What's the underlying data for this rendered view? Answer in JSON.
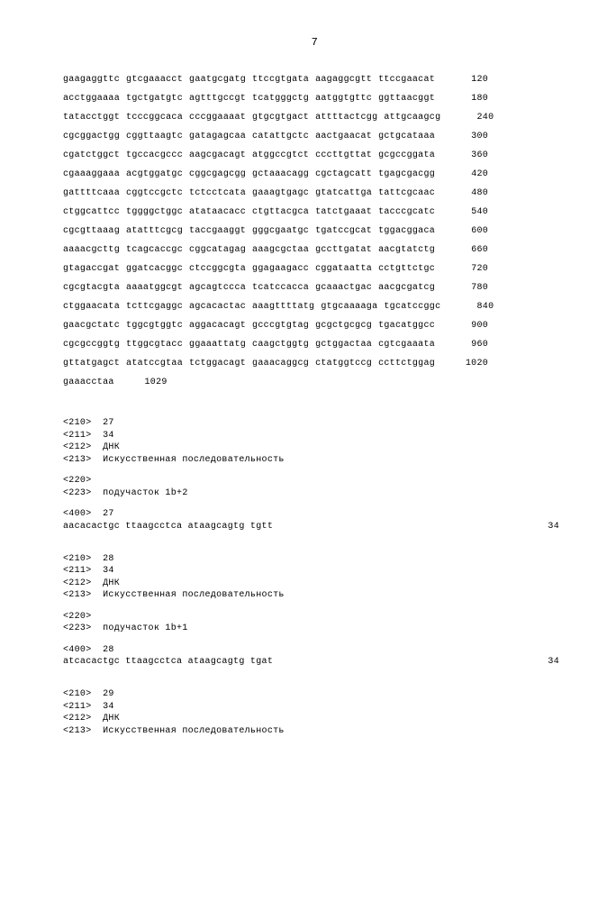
{
  "pageNumber": "7",
  "sequence26": {
    "lines": [
      {
        "groups": [
          "gaagaggttc",
          "gtcgaaacct",
          "gaatgcgatg",
          "ttccgtgata",
          "aagaggcgtt",
          "ttccgaacat"
        ],
        "num": "120"
      },
      {
        "groups": [
          "acctggaaaa",
          "tgctgatgtc",
          "agtttgccgt",
          "tcatgggctg",
          "aatggtgttc",
          "ggttaacggt"
        ],
        "num": "180"
      },
      {
        "groups": [
          "tatacctggt",
          "tcccggcaca",
          "cccggaaaat",
          "gtgcgtgact",
          "attttactcgg",
          "attgcaagcg"
        ],
        "num": "240"
      },
      {
        "groups": [
          "cgcggactgg",
          "cggttaagtc",
          "gatagagcaa",
          "catattgctc",
          "aactgaacat",
          "gctgcataaa"
        ],
        "num": "300"
      },
      {
        "groups": [
          "cgatctggct",
          "tgccacgccc",
          "aagcgacagt",
          "atggccgtct",
          "cccttgttat",
          "gcgccggata"
        ],
        "num": "360"
      },
      {
        "groups": [
          "cgaaaggaaa",
          "acgtggatgc",
          "cggcgagcgg",
          "gctaaacagg",
          "cgctagcatt",
          "tgagcgacgg"
        ],
        "num": "420"
      },
      {
        "groups": [
          "gattttcaaa",
          "cggtccgctc",
          "tctcctcata",
          "gaaagtgagc",
          "gtatcattga",
          "tattcgcaac"
        ],
        "num": "480"
      },
      {
        "groups": [
          "ctggcattcc",
          "tggggctggc",
          "atataacacc",
          "ctgttacgca",
          "tatctgaaat",
          "tacccgcatc"
        ],
        "num": "540"
      },
      {
        "groups": [
          "cgcgttaaag",
          "atatttcgcg",
          "taccgaaggt",
          "gggcgaatgc",
          "tgatccgcat",
          "tggacggaca"
        ],
        "num": "600"
      },
      {
        "groups": [
          "aaaacgcttg",
          "tcagcaccgc",
          "cggcatagag",
          "aaagcgctaa",
          "gccttgatat",
          "aacgtatctg"
        ],
        "num": "660"
      },
      {
        "groups": [
          "gtagaccgat",
          "ggatcacggc",
          "ctccggcgta",
          "ggagaagacc",
          "cggataatta",
          "cctgttctgc"
        ],
        "num": "720"
      },
      {
        "groups": [
          "cgcgtacgta",
          "aaaatggcgt",
          "agcagtccca",
          "tcatccacca",
          "gcaaactgac",
          "aacgcgatcg"
        ],
        "num": "780"
      },
      {
        "groups": [
          "ctggaacata",
          "tcttcgaggc",
          "agcacactac",
          "aaagttttatg",
          "gtgcaaaaga",
          "tgcatccggc"
        ],
        "num": "840"
      },
      {
        "groups": [
          "gaacgctatc",
          "tggcgtggtc",
          "aggacacagt",
          "gcccgtgtag",
          "gcgctgcgcg",
          "tgacatggcc"
        ],
        "num": "900"
      },
      {
        "groups": [
          "cgcgccggtg",
          "ttggcgtacc",
          "ggaaattatg",
          "caagctggtg",
          "gctggactaa",
          "cgtcgaaata"
        ],
        "num": "960"
      },
      {
        "groups": [
          "gttatgagct",
          "atatccgtaa",
          "tctggacagt",
          "gaaacaggcg",
          "ctatggtccg",
          "ccttctggag"
        ],
        "num": "1020"
      },
      {
        "groups": [
          "gaaacctaa"
        ],
        "num": "1029"
      }
    ]
  },
  "entry27": {
    "meta210": "<210>  27",
    "meta211": "<211>  34",
    "meta212": "<212>  ДНК",
    "meta213": "<213>  Искусственная последовательность",
    "meta220": "<220>",
    "meta223": "<223>  подучасток 1b+2",
    "meta400": "<400>  27",
    "seq": "aacacactgc ttaagcctca ataagcagtg tgtt",
    "seqNum": "34"
  },
  "entry28": {
    "meta210": "<210>  28",
    "meta211": "<211>  34",
    "meta212": "<212>  ДНК",
    "meta213": "<213>  Искусственная последовательность",
    "meta220": "<220>",
    "meta223": "<223>  подучасток 1b+1",
    "meta400": "<400>  28",
    "seq": "atcacactgc ttaagcctca ataagcagtg tgat",
    "seqNum": "34"
  },
  "entry29": {
    "meta210": "<210>  29",
    "meta211": "<211>  34",
    "meta212": "<212>  ДНК",
    "meta213": "<213>  Искусственная последовательность"
  }
}
